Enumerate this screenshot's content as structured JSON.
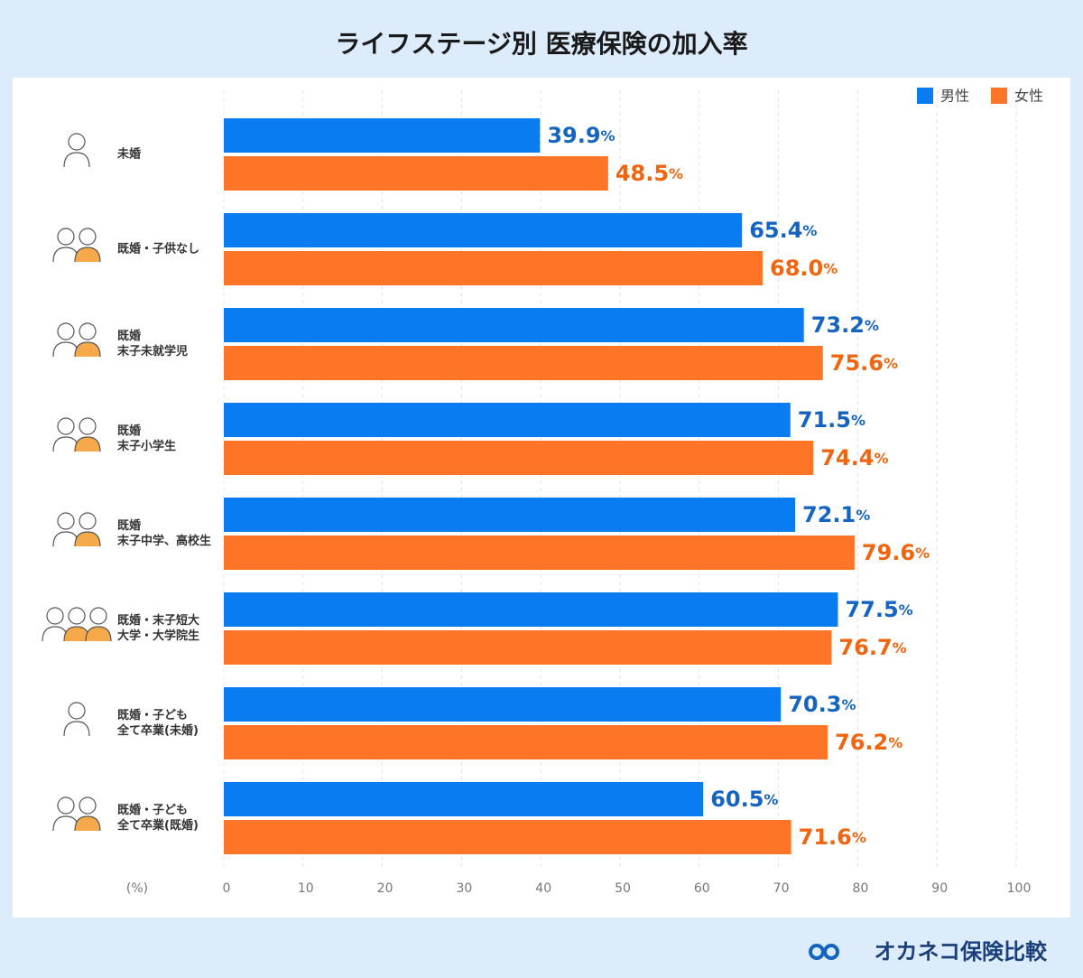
{
  "chart_data": {
    "type": "barh",
    "title": "ライフステージ別 医療保険の加入率",
    "x_label": "(%)",
    "categories": [
      [
        "未婚"
      ],
      [
        "既婚・子供なし"
      ],
      [
        "既婚",
        "末子未就学児"
      ],
      [
        "既婚",
        "末子小学生"
      ],
      [
        "既婚",
        "末子中学、高校生"
      ],
      [
        "既婚・末子短大",
        "大学・大学院生"
      ],
      [
        "既婚・子ども",
        "全て卒業(未婚)"
      ],
      [
        "既婚・子ども",
        "全て卒業(既婚)"
      ]
    ],
    "series": [
      {
        "name": "男性",
        "color": "#0a7cf2",
        "label_color": "#1565c0",
        "values": [
          39.9,
          65.4,
          73.2,
          71.5,
          72.1,
          77.5,
          70.3,
          60.5
        ],
        "value_labels": [
          "39.9%",
          "65.4%",
          "73.2%",
          "71.5%",
          "72.1%",
          "77.5%",
          "70.3%",
          "60.5%"
        ]
      },
      {
        "name": "女性",
        "color": "#ff7528",
        "label_color": "#f0650f",
        "values": [
          48.5,
          68.0,
          75.6,
          74.4,
          79.6,
          76.7,
          76.2,
          71.6
        ],
        "value_labels": [
          "48.5%",
          "68.0%",
          "75.6%",
          "74.4%",
          "79.6%",
          "76.7%",
          "76.2%",
          "71.6%"
        ]
      }
    ],
    "xlim": [
      0,
      100
    ],
    "xticks": [
      0,
      10,
      20,
      30,
      40,
      50,
      60,
      70,
      80,
      90,
      100
    ],
    "grid": true,
    "legend": "top-right"
  },
  "footer": {
    "brand": "オカネコ保険比較"
  }
}
